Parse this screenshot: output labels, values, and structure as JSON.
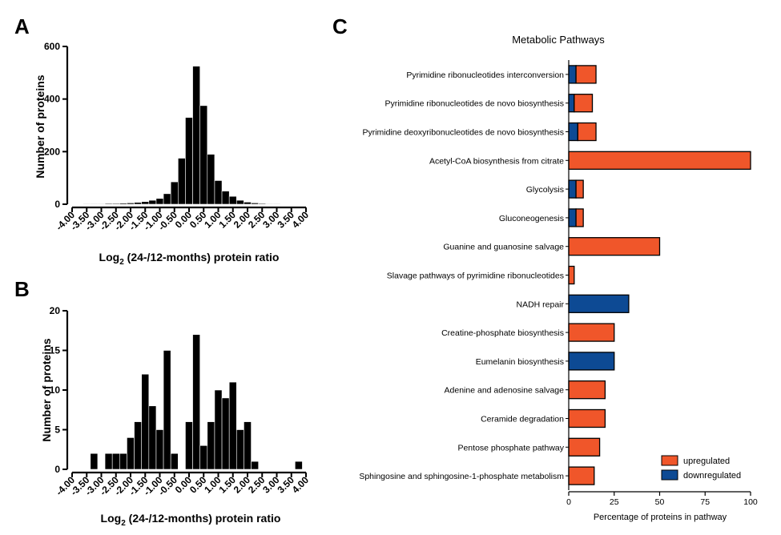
{
  "chart_data": [
    {
      "panel": "A",
      "type": "bar",
      "xlabel_main": "Log",
      "xlabel_sub": "2",
      "xlabel_rest": " (24-/12-months) protein ratio",
      "ylabel": "Number of proteins",
      "ylim": [
        0,
        600
      ],
      "yticks": [
        "0",
        "200",
        "400",
        "600"
      ],
      "xticks": [
        "-4.00",
        "-3.50",
        "-3.00",
        "-2.50",
        "-2.00",
        "-1.50",
        "-1.00",
        "-0.50",
        "0.00",
        "0.50",
        "1.00",
        "1.50",
        "2.00",
        "2.50",
        "3.00",
        "3.50",
        "4.00"
      ],
      "x": [
        -4.0,
        -3.75,
        -3.5,
        -3.25,
        -3.0,
        -2.75,
        -2.5,
        -2.25,
        -2.0,
        -1.75,
        -1.5,
        -1.25,
        -1.0,
        -0.75,
        -0.5,
        -0.25,
        0.0,
        0.25,
        0.5,
        0.75,
        1.0,
        1.25,
        1.5,
        1.75,
        2.0,
        2.25,
        2.5,
        2.75,
        3.0,
        3.25,
        3.5,
        3.75,
        4.0
      ],
      "values": [
        1,
        1,
        2,
        2,
        2,
        3,
        3,
        4,
        5,
        7,
        10,
        15,
        22,
        40,
        85,
        175,
        330,
        525,
        375,
        190,
        90,
        50,
        30,
        15,
        8,
        5,
        3,
        2,
        2,
        1,
        1,
        1,
        1
      ]
    },
    {
      "panel": "B",
      "type": "bar",
      "xlabel_main": "Log",
      "xlabel_sub": "2",
      "xlabel_rest": " (24-/12-months) protein ratio",
      "ylabel": "Number of proteins",
      "ylim": [
        0,
        20
      ],
      "yticks": [
        "0",
        "5",
        "10",
        "15",
        "20"
      ],
      "xticks": [
        "-4.00",
        "-3.50",
        "-3.00",
        "-2.50",
        "-2.00",
        "-1.50",
        "-1.00",
        "-0.50",
        "0.00",
        "0.50",
        "1.00",
        "1.50",
        "2.00",
        "2.50",
        "3.00",
        "3.50",
        "4.00"
      ],
      "x": [
        -4.0,
        -3.75,
        -3.5,
        -3.25,
        -3.0,
        -2.75,
        -2.5,
        -2.25,
        -2.0,
        -1.75,
        -1.5,
        -1.25,
        -1.0,
        -0.75,
        -0.5,
        -0.25,
        0.0,
        0.25,
        0.5,
        0.75,
        1.0,
        1.25,
        1.5,
        1.75,
        2.0,
        2.25,
        2.5,
        2.75,
        3.0,
        3.25,
        3.5,
        3.75,
        4.0
      ],
      "values": [
        0,
        0,
        0,
        2,
        0,
        2,
        2,
        2,
        4,
        6,
        12,
        8,
        5,
        15,
        2,
        0,
        6,
        17,
        3,
        6,
        10,
        9,
        11,
        5,
        6,
        1,
        0,
        0,
        0,
        0,
        0,
        1,
        0
      ]
    },
    {
      "panel": "C",
      "type": "bar",
      "orientation": "horizontal",
      "stacked": true,
      "title": "Metabolic Pathways",
      "xlabel": "Percentage of proteins in pathway",
      "xlim": [
        0,
        100
      ],
      "xticks": [
        "0",
        "25",
        "50",
        "75",
        "100"
      ],
      "categories": [
        "Pyrimidine ribonucleotides interconversion",
        "Pyrimidine ribonucleotides de novo biosynthesis",
        "Pyrimidine deoxyribonucleotides de novo biosynthesis",
        "Acetyl-CoA biosynthesis from citrate",
        "Glycolysis",
        "Gluconeogenesis",
        "Guanine and guanosine salvage",
        "Slavage pathways of pyrimidine ribonucleotides",
        "NADH repair",
        "Creatine-phosphate biosynthesis",
        "Eumelanin biosynthesis",
        "Adenine and adenosine salvage",
        "Ceramide degradation",
        "Pentose phosphate pathway",
        "Sphingosine and sphingosine-1-phosphate metabolism"
      ],
      "series": [
        {
          "name": "downregulated",
          "color": "#0d4a94",
          "values": [
            4,
            3,
            5,
            0,
            4,
            4,
            0,
            0,
            33,
            0,
            25,
            0,
            0,
            0,
            0
          ]
        },
        {
          "name": "upregulated",
          "color": "#f0562a",
          "values": [
            11,
            10,
            10,
            100,
            4,
            4,
            50,
            3,
            0,
            25,
            0,
            20,
            20,
            17,
            14
          ]
        }
      ],
      "legend": {
        "position": "bottom-right",
        "order": [
          "upregulated",
          "downregulated"
        ]
      }
    }
  ]
}
